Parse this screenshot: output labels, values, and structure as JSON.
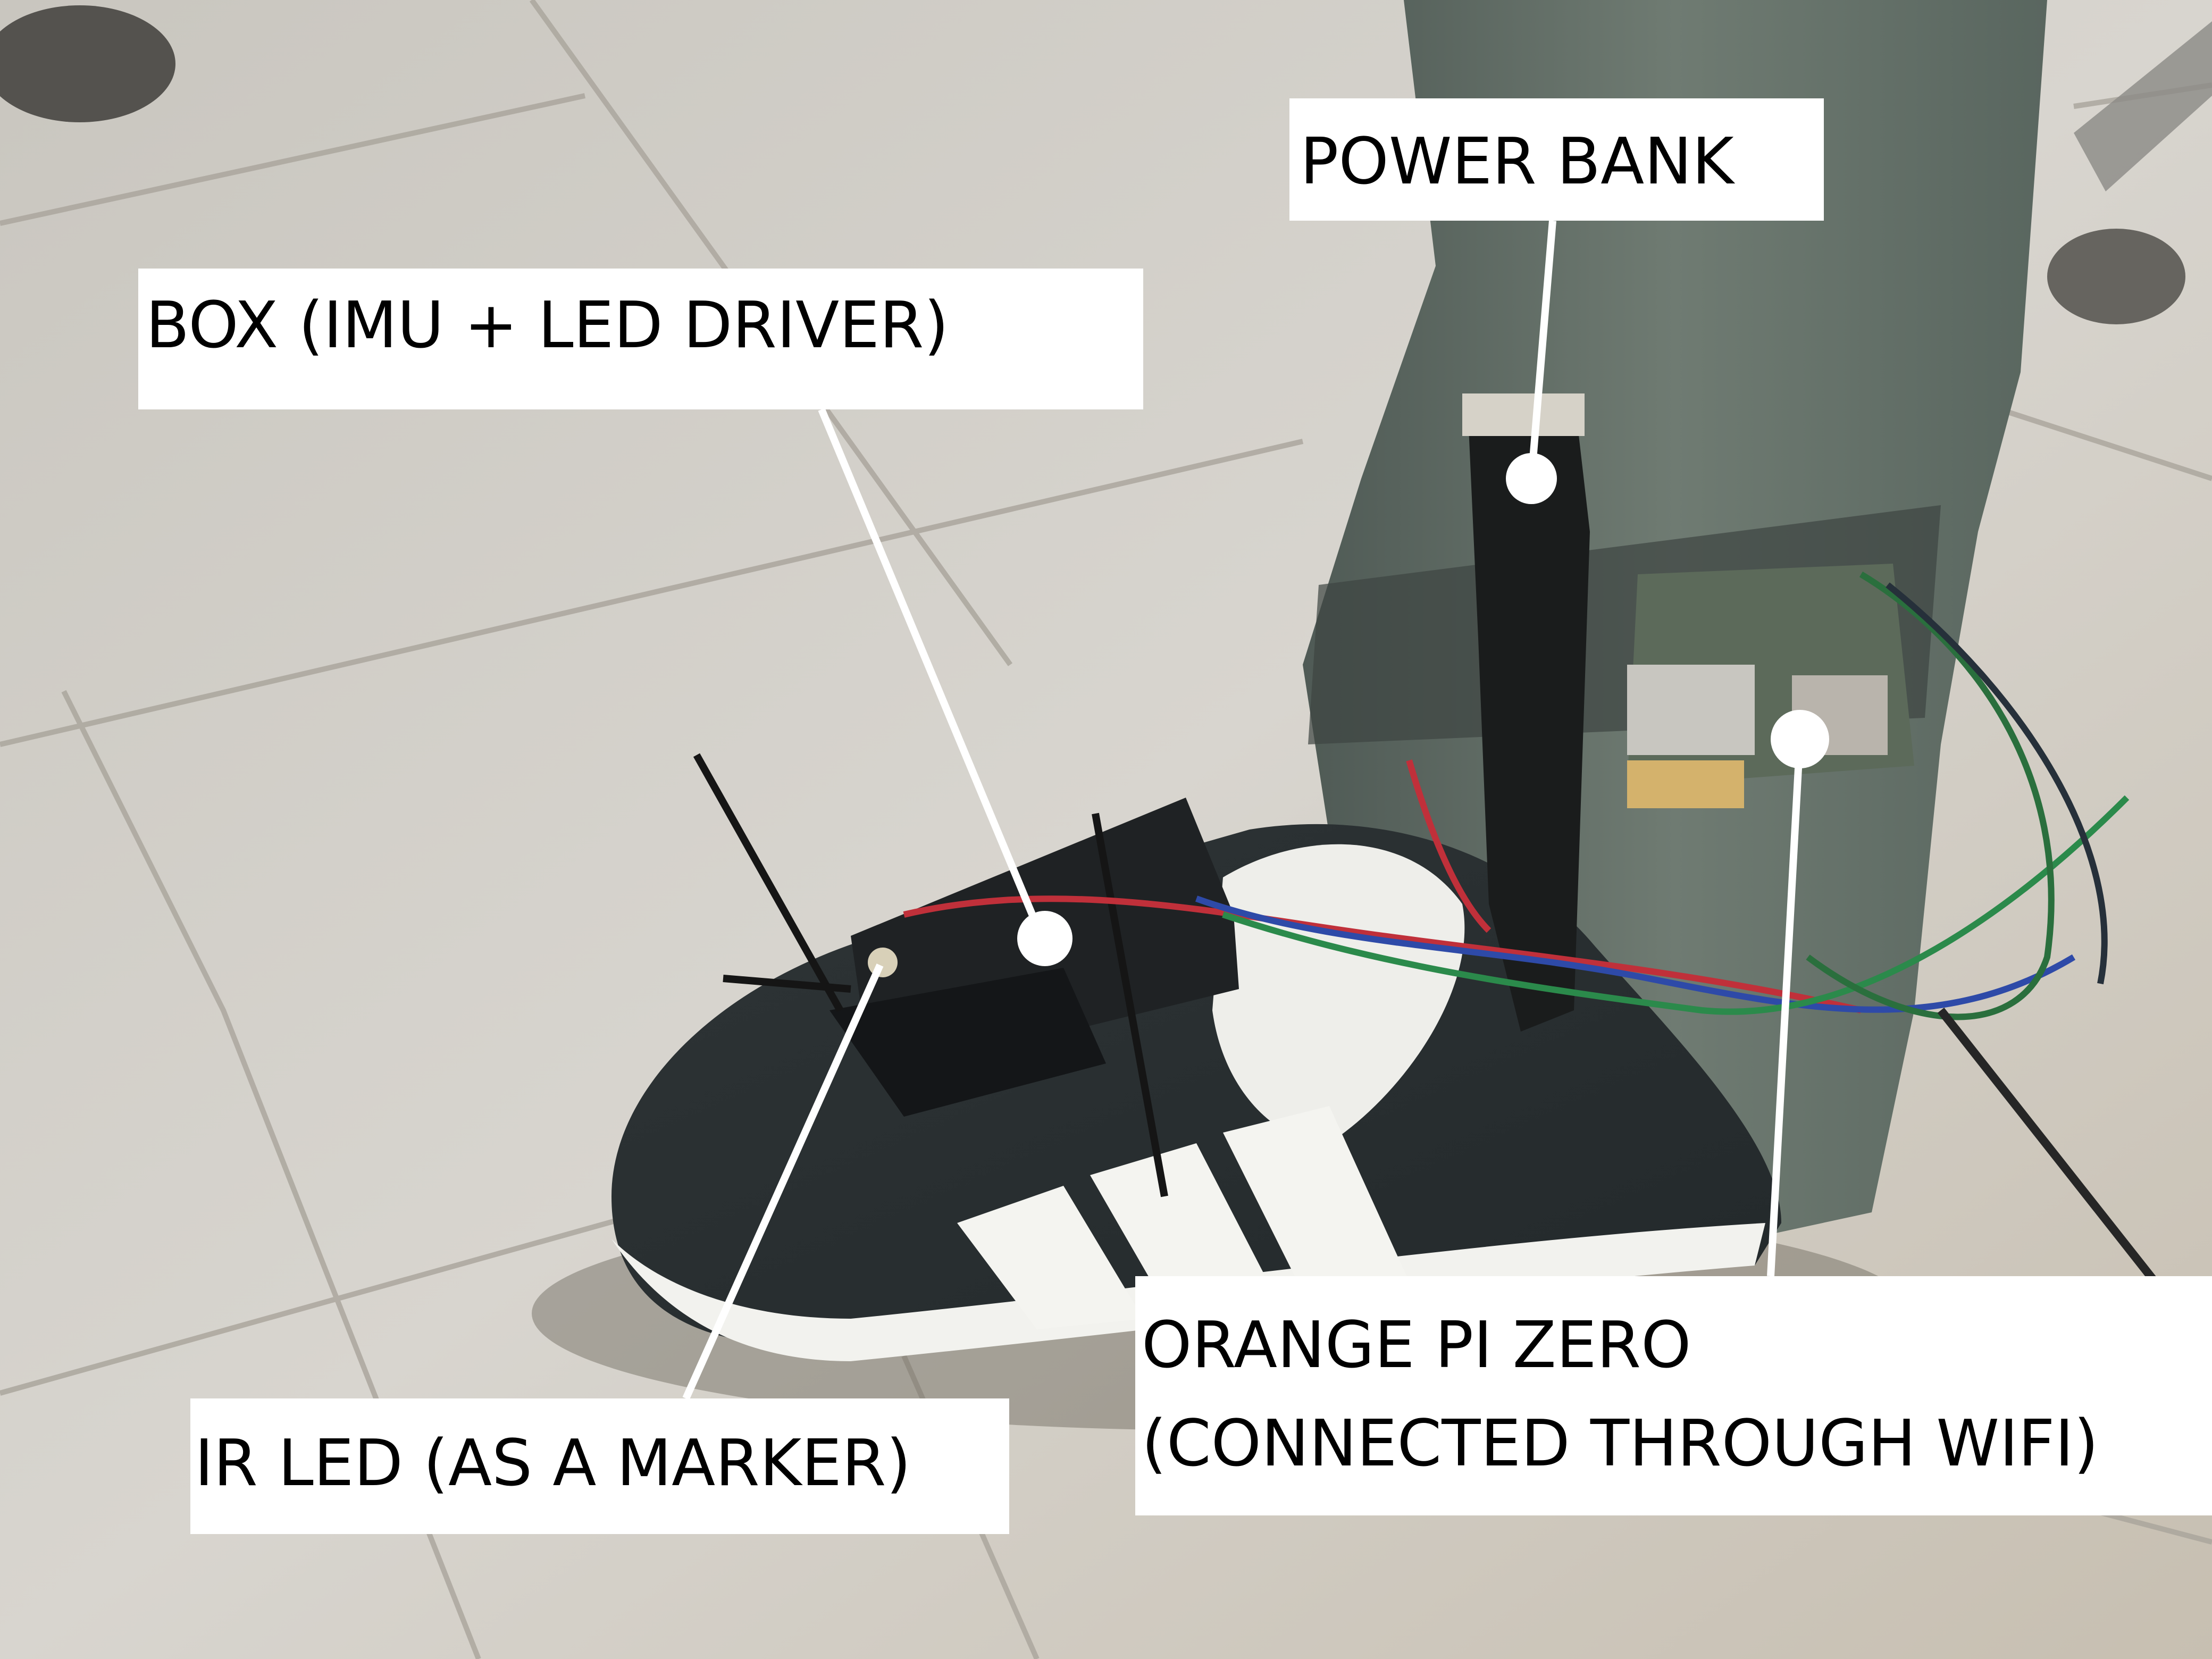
{
  "labels": {
    "box": "BOX (IMU + LED DRIVER)",
    "power_bank": "POWER BANK",
    "orange_pi_line1": "ORANGE PI ZERO",
    "orange_pi_line2": "(CONNECTED THROUGH WIFI)",
    "ir_led": "IR LED (AS A MARKER)"
  },
  "colors": {
    "label_background": "#ffffff",
    "label_text": "#000000",
    "pointer": "#ffffff"
  }
}
